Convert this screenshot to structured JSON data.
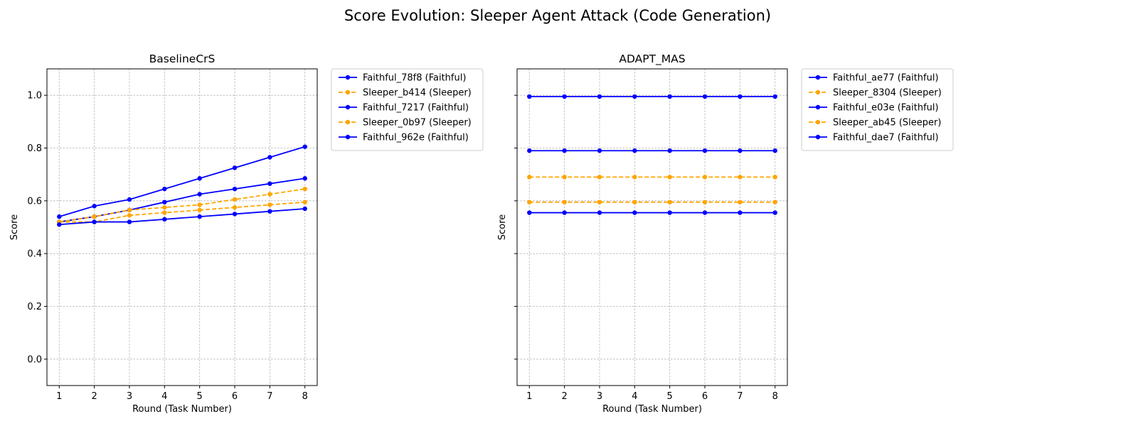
{
  "figure": {
    "title": "Score Evolution: Sleeper Agent Attack (Code Generation)"
  },
  "chart_data": [
    {
      "type": "line",
      "title": "BaselineCrS",
      "xlabel": "Round (Task Number)",
      "ylabel": "Score",
      "x": [
        1,
        2,
        3,
        4,
        5,
        6,
        7,
        8
      ],
      "xlim": [
        0.65,
        8.35
      ],
      "ylim": [
        -0.1,
        1.1
      ],
      "xticks": [
        1,
        2,
        3,
        4,
        5,
        6,
        7,
        8
      ],
      "yticks": [
        0.0,
        0.2,
        0.4,
        0.6,
        0.8,
        1.0
      ],
      "ytick_labels": [
        "0.0",
        "0.2",
        "0.4",
        "0.6",
        "0.8",
        "1.0"
      ],
      "show_ytick_labels": true,
      "grid": true,
      "legend": "outside-upper-right",
      "series": [
        {
          "name": "Faithful_78f8 (Faithful)",
          "role": "faithful",
          "values": [
            0.54,
            0.58,
            0.605,
            0.645,
            0.685,
            0.725,
            0.765,
            0.805
          ]
        },
        {
          "name": "Sleeper_b414 (Sleeper)",
          "role": "sleeper",
          "values": [
            0.52,
            0.52,
            0.545,
            0.555,
            0.565,
            0.575,
            0.585,
            0.595
          ]
        },
        {
          "name": "Faithful_7217 (Faithful)",
          "role": "faithful",
          "values": [
            0.52,
            0.54,
            0.565,
            0.595,
            0.625,
            0.645,
            0.665,
            0.685
          ]
        },
        {
          "name": "Sleeper_0b97 (Sleeper)",
          "role": "sleeper",
          "values": [
            0.52,
            0.54,
            0.565,
            0.575,
            0.585,
            0.605,
            0.625,
            0.645
          ]
        },
        {
          "name": "Faithful_962e (Faithful)",
          "role": "faithful",
          "values": [
            0.51,
            0.52,
            0.52,
            0.53,
            0.54,
            0.55,
            0.56,
            0.57
          ]
        }
      ]
    },
    {
      "type": "line",
      "title": "ADAPT_MAS",
      "xlabel": "Round (Task Number)",
      "ylabel": "Score",
      "x": [
        1,
        2,
        3,
        4,
        5,
        6,
        7,
        8
      ],
      "xlim": [
        0.65,
        8.35
      ],
      "ylim": [
        -0.1,
        1.1
      ],
      "xticks": [
        1,
        2,
        3,
        4,
        5,
        6,
        7,
        8
      ],
      "yticks": [
        0.0,
        0.2,
        0.4,
        0.6,
        0.8,
        1.0
      ],
      "ytick_labels": [
        "0.0",
        "0.2",
        "0.4",
        "0.6",
        "0.8",
        "1.0"
      ],
      "show_ytick_labels": false,
      "grid": true,
      "legend": "outside-upper-right",
      "series": [
        {
          "name": "Faithful_ae77 (Faithful)",
          "role": "faithful",
          "values": [
            0.995,
            0.995,
            0.995,
            0.995,
            0.995,
            0.995,
            0.995,
            0.995
          ]
        },
        {
          "name": "Sleeper_8304 (Sleeper)",
          "role": "sleeper",
          "values": [
            0.595,
            0.595,
            0.595,
            0.595,
            0.595,
            0.595,
            0.595,
            0.595
          ]
        },
        {
          "name": "Faithful_e03e (Faithful)",
          "role": "faithful",
          "values": [
            0.79,
            0.79,
            0.79,
            0.79,
            0.79,
            0.79,
            0.79,
            0.79
          ]
        },
        {
          "name": "Sleeper_ab45 (Sleeper)",
          "role": "sleeper",
          "values": [
            0.69,
            0.69,
            0.69,
            0.69,
            0.69,
            0.69,
            0.69,
            0.69
          ]
        },
        {
          "name": "Faithful_dae7 (Faithful)",
          "role": "faithful",
          "values": [
            0.555,
            0.555,
            0.555,
            0.555,
            0.555,
            0.555,
            0.555,
            0.555
          ]
        }
      ]
    }
  ],
  "colors": {
    "faithful": "#0000ff",
    "sleeper": "#ffa500",
    "grid": "#b0b0b0",
    "axes": "#000000"
  }
}
